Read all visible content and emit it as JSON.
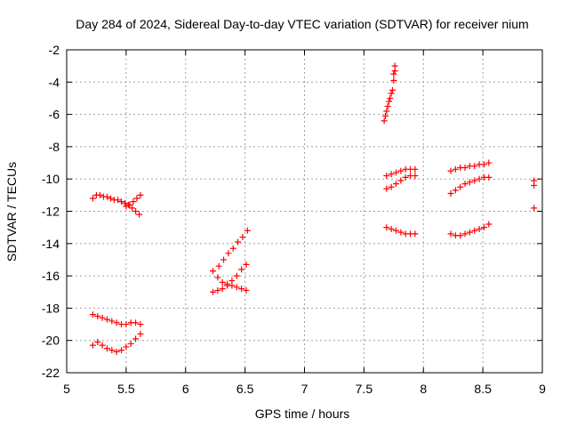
{
  "chart_data": {
    "type": "scatter",
    "title": "Day 284 of 2024, Sidereal Day-to-day VTEC variation (SDTVAR) for receiver nium",
    "xlabel": "GPS time / hours",
    "ylabel": "SDTVAR / TECUs",
    "xlim": [
      5,
      9
    ],
    "ylim": [
      -22,
      -2
    ],
    "x_ticks": [
      5,
      5.5,
      6,
      6.5,
      7,
      7.5,
      8,
      8.5,
      9
    ],
    "x_tick_labels": [
      "5",
      "5.5",
      "6",
      "6.5",
      "7",
      "7.5",
      "8",
      "8.5",
      "9"
    ],
    "y_ticks": [
      -2,
      -4,
      -6,
      -8,
      -10,
      -12,
      -14,
      -16,
      -18,
      -20,
      -22
    ],
    "y_tick_labels": [
      "-2",
      "-4",
      "-6",
      "-8",
      "-10",
      "-12",
      "-14",
      "-16",
      "-18",
      "-20",
      "-22"
    ],
    "grid": true,
    "marker": "+",
    "marker_color": "#ff0000",
    "series": [
      {
        "points": [
          [
            5.22,
            -11.2
          ],
          [
            5.25,
            -11.0
          ],
          [
            5.28,
            -11.0
          ],
          [
            5.31,
            -11.1
          ],
          [
            5.34,
            -11.1
          ],
          [
            5.37,
            -11.2
          ],
          [
            5.4,
            -11.3
          ],
          [
            5.43,
            -11.3
          ],
          [
            5.46,
            -11.4
          ],
          [
            5.49,
            -11.5
          ],
          [
            5.52,
            -11.6
          ],
          [
            5.55,
            -11.8
          ],
          [
            5.58,
            -12.0
          ],
          [
            5.61,
            -12.2
          ],
          [
            5.5,
            -11.7
          ],
          [
            5.53,
            -11.6
          ],
          [
            5.56,
            -11.4
          ],
          [
            5.59,
            -11.2
          ],
          [
            5.62,
            -11.0
          ],
          [
            5.22,
            -18.4
          ],
          [
            5.26,
            -18.5
          ],
          [
            5.3,
            -18.6
          ],
          [
            5.34,
            -18.7
          ],
          [
            5.38,
            -18.8
          ],
          [
            5.42,
            -18.9
          ],
          [
            5.46,
            -19.0
          ],
          [
            5.5,
            -19.0
          ],
          [
            5.54,
            -18.9
          ],
          [
            5.58,
            -18.9
          ],
          [
            5.62,
            -19.0
          ],
          [
            5.22,
            -20.3
          ],
          [
            5.26,
            -20.1
          ],
          [
            5.3,
            -20.3
          ],
          [
            5.34,
            -20.5
          ],
          [
            5.38,
            -20.6
          ],
          [
            5.42,
            -20.7
          ],
          [
            5.46,
            -20.6
          ],
          [
            5.5,
            -20.4
          ],
          [
            5.54,
            -20.2
          ],
          [
            5.58,
            -19.9
          ],
          [
            5.62,
            -19.6
          ],
          [
            6.23,
            -17.0
          ],
          [
            6.27,
            -16.9
          ],
          [
            6.31,
            -16.8
          ],
          [
            6.35,
            -16.6
          ],
          [
            6.39,
            -16.3
          ],
          [
            6.43,
            -16.0
          ],
          [
            6.47,
            -15.6
          ],
          [
            6.51,
            -15.3
          ],
          [
            6.23,
            -15.7
          ],
          [
            6.27,
            -16.1
          ],
          [
            6.31,
            -16.4
          ],
          [
            6.35,
            -16.5
          ],
          [
            6.39,
            -16.6
          ],
          [
            6.43,
            -16.7
          ],
          [
            6.47,
            -16.8
          ],
          [
            6.51,
            -16.9
          ],
          [
            6.28,
            -15.4
          ],
          [
            6.32,
            -15.0
          ],
          [
            6.36,
            -14.6
          ],
          [
            6.4,
            -14.3
          ],
          [
            6.44,
            -13.9
          ],
          [
            6.48,
            -13.6
          ],
          [
            6.52,
            -13.2
          ],
          [
            7.67,
            -6.4
          ],
          [
            7.68,
            -6.1
          ],
          [
            7.69,
            -5.8
          ],
          [
            7.7,
            -5.5
          ],
          [
            7.71,
            -5.2
          ],
          [
            7.72,
            -5.0
          ],
          [
            7.73,
            -4.7
          ],
          [
            7.74,
            -4.5
          ],
          [
            7.75,
            -3.9
          ],
          [
            7.75,
            -3.5
          ],
          [
            7.76,
            -3.3
          ],
          [
            7.76,
            -3.0
          ],
          [
            7.69,
            -9.8
          ],
          [
            7.73,
            -9.7
          ],
          [
            7.77,
            -9.6
          ],
          [
            7.81,
            -9.5
          ],
          [
            7.85,
            -9.4
          ],
          [
            7.89,
            -9.4
          ],
          [
            7.93,
            -9.4
          ],
          [
            7.69,
            -10.6
          ],
          [
            7.73,
            -10.5
          ],
          [
            7.77,
            -10.3
          ],
          [
            7.81,
            -10.1
          ],
          [
            7.85,
            -9.9
          ],
          [
            7.89,
            -9.8
          ],
          [
            7.93,
            -9.8
          ],
          [
            7.69,
            -13.0
          ],
          [
            7.73,
            -13.1
          ],
          [
            7.77,
            -13.2
          ],
          [
            7.81,
            -13.3
          ],
          [
            7.85,
            -13.4
          ],
          [
            7.89,
            -13.4
          ],
          [
            7.93,
            -13.4
          ],
          [
            8.23,
            -9.5
          ],
          [
            8.27,
            -9.4
          ],
          [
            8.31,
            -9.3
          ],
          [
            8.35,
            -9.3
          ],
          [
            8.39,
            -9.2
          ],
          [
            8.43,
            -9.2
          ],
          [
            8.47,
            -9.1
          ],
          [
            8.51,
            -9.1
          ],
          [
            8.55,
            -9.0
          ],
          [
            8.23,
            -10.9
          ],
          [
            8.27,
            -10.7
          ],
          [
            8.31,
            -10.5
          ],
          [
            8.35,
            -10.3
          ],
          [
            8.39,
            -10.2
          ],
          [
            8.43,
            -10.1
          ],
          [
            8.47,
            -10.0
          ],
          [
            8.51,
            -9.9
          ],
          [
            8.55,
            -9.9
          ],
          [
            8.23,
            -13.4
          ],
          [
            8.27,
            -13.5
          ],
          [
            8.31,
            -13.5
          ],
          [
            8.35,
            -13.4
          ],
          [
            8.39,
            -13.3
          ],
          [
            8.43,
            -13.2
          ],
          [
            8.47,
            -13.1
          ],
          [
            8.51,
            -13.0
          ],
          [
            8.55,
            -12.8
          ],
          [
            8.93,
            -10.1
          ],
          [
            8.93,
            -10.4
          ],
          [
            8.93,
            -11.8
          ]
        ]
      }
    ]
  }
}
